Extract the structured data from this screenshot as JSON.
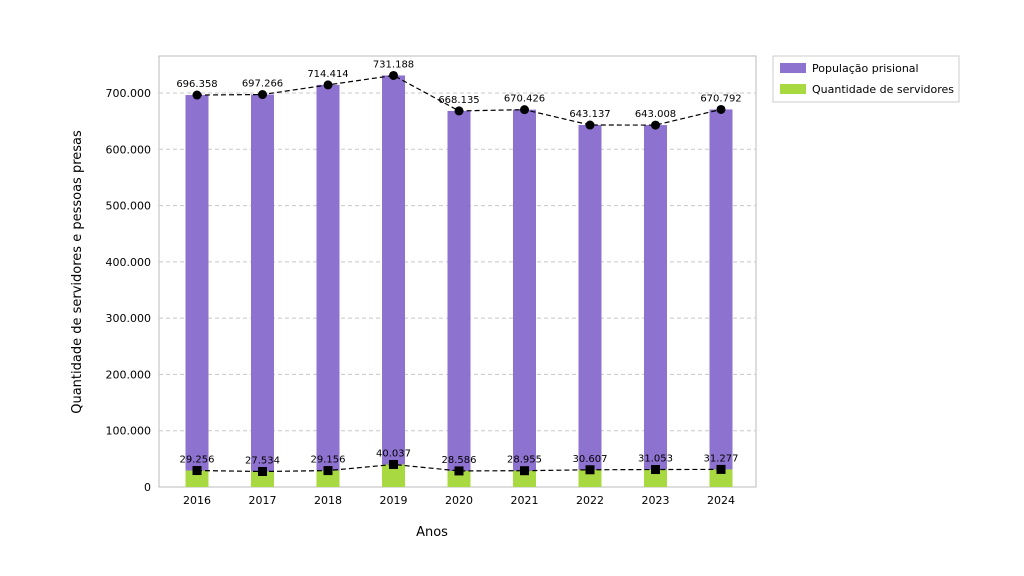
{
  "chart_data": {
    "type": "bar",
    "xlabel": "Anos",
    "ylabel": "Quantidade de servidores e pessoas presas",
    "categories": [
      "2016",
      "2017",
      "2018",
      "2019",
      "2020",
      "2021",
      "2022",
      "2023",
      "2024"
    ],
    "ylim": [
      0,
      750000
    ],
    "yticks": [
      0,
      100000,
      200000,
      300000,
      400000,
      500000,
      600000,
      700000
    ],
    "ytick_labels": [
      "0",
      "100.000",
      "200.000",
      "300.000",
      "400.000",
      "500.000",
      "600.000",
      "700.000"
    ],
    "grid": true,
    "legend_position": "top-right, outside plot",
    "series": [
      {
        "name": "População prisional",
        "color": "#8e72d0",
        "marker": "circle",
        "values": [
          696358,
          697266,
          714414,
          731188,
          668135,
          670426,
          643137,
          643008,
          670792
        ],
        "labels": [
          "696.358",
          "697.266",
          "714.414",
          "731.188",
          "668.135",
          "670.426",
          "643.137",
          "643.008",
          "670.792"
        ]
      },
      {
        "name": "Quantidade de servidores",
        "color": "#a8d941",
        "marker": "square",
        "values": [
          29256,
          27534,
          29156,
          40037,
          28586,
          28955,
          30607,
          31053,
          31277
        ],
        "labels": [
          "29.256",
          "27.534",
          "29.156",
          "40.037",
          "28.586",
          "28.955",
          "30.607",
          "31.053",
          "31.277"
        ]
      }
    ]
  }
}
